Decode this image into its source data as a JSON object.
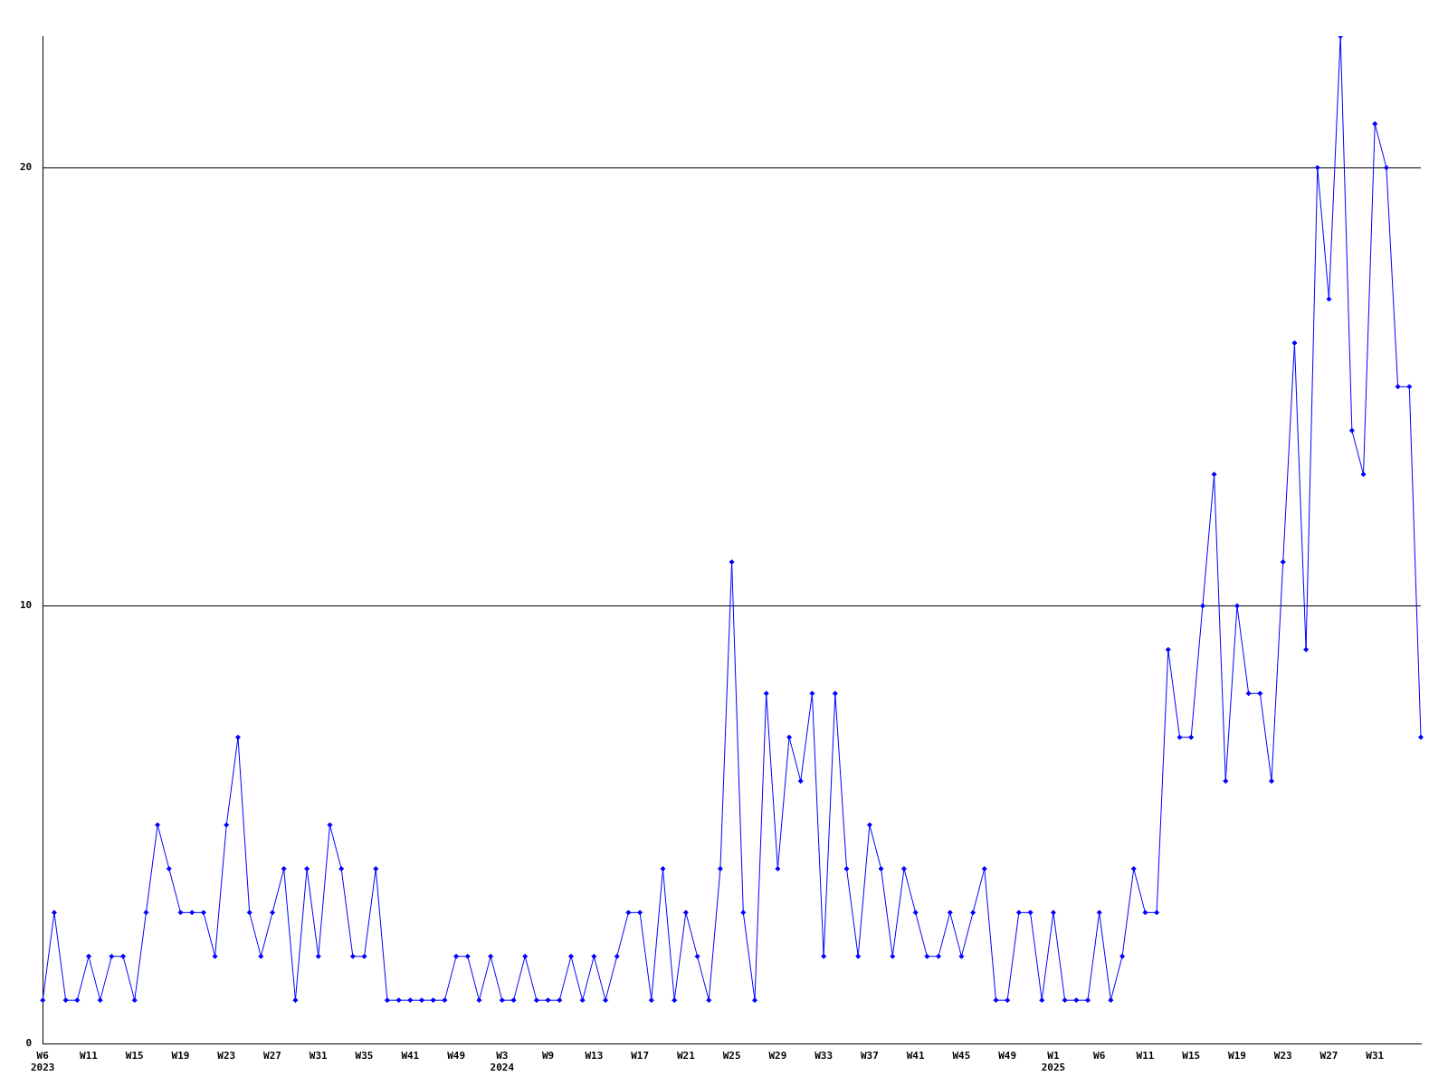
{
  "chart_data": {
    "type": "line",
    "categories": [
      "W6\n2023",
      null,
      null,
      null,
      "W11",
      null,
      null,
      null,
      "W15",
      null,
      null,
      null,
      "W19",
      null,
      null,
      null,
      "W23",
      null,
      null,
      null,
      "W27",
      null,
      null,
      null,
      "W31",
      null,
      null,
      null,
      "W35",
      null,
      null,
      null,
      "W41",
      null,
      null,
      null,
      "W49",
      null,
      null,
      null,
      "W3\n2024",
      null,
      null,
      null,
      "W9",
      null,
      null,
      null,
      "W13",
      null,
      null,
      null,
      "W17",
      null,
      null,
      null,
      "W21",
      null,
      null,
      null,
      "W25",
      null,
      null,
      null,
      "W29",
      null,
      null,
      null,
      "W33",
      null,
      null,
      null,
      "W37",
      null,
      null,
      null,
      "W41",
      null,
      null,
      null,
      "W45",
      null,
      null,
      null,
      "W49",
      null,
      null,
      null,
      "W1\n2025",
      null,
      null,
      null,
      "W6",
      null,
      null,
      null,
      "W11",
      null,
      null,
      null,
      "W15",
      null,
      null,
      null,
      "W19",
      null,
      null,
      null,
      "W23",
      null,
      null,
      null,
      "W27",
      null,
      null,
      null,
      "W31",
      null,
      null,
      null,
      null
    ],
    "series": [
      {
        "color": "#0000ff",
        "values": [
          1,
          3,
          1,
          1,
          2,
          1,
          2,
          2,
          1,
          3,
          5,
          4,
          3,
          3,
          3,
          2,
          5,
          7,
          3,
          2,
          3,
          4,
          1,
          4,
          2,
          5,
          4,
          2,
          2,
          4,
          1,
          1,
          1,
          1,
          1,
          1,
          2,
          2,
          1,
          2,
          1,
          1,
          2,
          1,
          1,
          1,
          2,
          1,
          2,
          1,
          2,
          3,
          3,
          1,
          4,
          1,
          3,
          2,
          1,
          4,
          11,
          3,
          1,
          8,
          4,
          7,
          6,
          8,
          2,
          8,
          4,
          2,
          5,
          4,
          2,
          4,
          3,
          2,
          2,
          3,
          2,
          3,
          4,
          1,
          1,
          3,
          3,
          1,
          3,
          1,
          1,
          1,
          3,
          1,
          2,
          4,
          3,
          3,
          9,
          7,
          7,
          10,
          13,
          6,
          10,
          8,
          8,
          6,
          11,
          16,
          9,
          20,
          17,
          23,
          14,
          13,
          21,
          20,
          15,
          15,
          7
        ]
      }
    ],
    "ylim": [
      0,
      23
    ],
    "yticks": [
      0,
      10,
      20
    ],
    "grid": "y",
    "legend": false,
    "marker": "diamond",
    "line_style": "solid"
  }
}
